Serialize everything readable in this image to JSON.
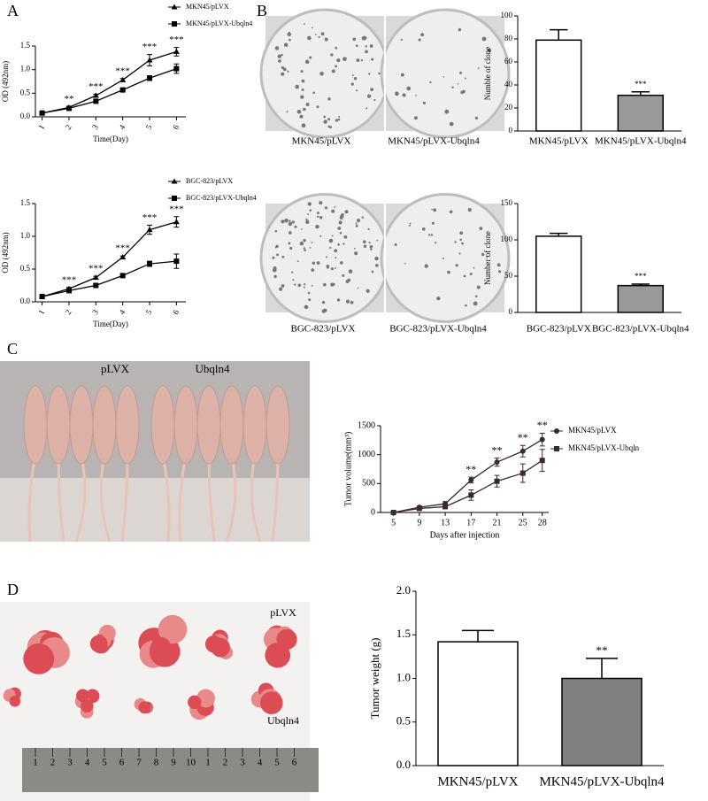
{
  "panel_letters": [
    "A",
    "B",
    "C",
    "D"
  ],
  "plates": {
    "captions": [
      "MKN45/pLVX",
      "MKN45/pLVX-Ubqln4",
      "BGC-823/pLVX",
      "BGC-823/pLVX-Ubqln4"
    ]
  },
  "mice_photo": {
    "labels": [
      "pLVX",
      "Ubqln4"
    ]
  },
  "tumor_photo": {
    "labels": [
      "pLVX",
      "Ubqln4"
    ],
    "ruler": [
      "1",
      "2",
      "3",
      "4",
      "5",
      "6",
      "7",
      "8",
      "9",
      "10",
      "1",
      "2",
      "3",
      "4",
      "5",
      "6"
    ]
  },
  "chart_data": [
    {
      "type": "line",
      "x_label": "Time(Day)",
      "y_label": "OD (492nm)",
      "legend": "top-right",
      "x": [
        1,
        2,
        3,
        4,
        5,
        6
      ],
      "xlim": [
        0.75,
        6.35
      ],
      "xticks": [
        1,
        2,
        3,
        4,
        5,
        6
      ],
      "ylim": [
        0,
        1.5
      ],
      "yticks": [
        {
          "value": 0,
          "label": "0.0"
        },
        {
          "value": 0.5,
          "label": "0.5"
        },
        {
          "value": 1,
          "label": "1.0"
        },
        {
          "value": 1.5,
          "label": "1.5"
        }
      ],
      "series": [
        {
          "name": "MKN45/pLVX",
          "color": "#000000",
          "marker": "triangle",
          "values": [
            0.08,
            0.2,
            0.45,
            0.78,
            1.2,
            1.38
          ],
          "errors": [
            0.01,
            0.02,
            0.03,
            0.03,
            0.12,
            0.09
          ]
        },
        {
          "name": "MKN45/pLVX-Ubqln4",
          "color": "#000000",
          "marker": "square",
          "values": [
            0.08,
            0.18,
            0.33,
            0.57,
            0.82,
            1.02
          ],
          "errors": [
            0.01,
            0.02,
            0.02,
            0.02,
            0.05,
            0.1
          ]
        }
      ],
      "significance": [
        null,
        "**",
        "***",
        "***",
        "***",
        "***"
      ]
    },
    {
      "type": "line",
      "x_label": "Time(Day)",
      "y_label": "OD (492nm)",
      "legend": "top-right",
      "x": [
        1,
        2,
        3,
        4,
        5,
        6
      ],
      "xlim": [
        0.75,
        6.35
      ],
      "xticks": [
        1,
        2,
        3,
        4,
        5,
        6
      ],
      "ylim": [
        0,
        1.5
      ],
      "yticks": [
        {
          "value": 0,
          "label": "0.0"
        },
        {
          "value": 0.5,
          "label": "0.5"
        },
        {
          "value": 1,
          "label": "1.0"
        },
        {
          "value": 1.5,
          "label": "1.5"
        }
      ],
      "series": [
        {
          "name": "BGC-823/pLVX",
          "color": "#000000",
          "marker": "triangle",
          "values": [
            0.08,
            0.2,
            0.37,
            0.68,
            1.1,
            1.22
          ],
          "errors": [
            0.01,
            0.02,
            0.02,
            0.02,
            0.07,
            0.08
          ]
        },
        {
          "name": "BGC-823/pLVX-Ubqln4",
          "color": "#000000",
          "marker": "square",
          "values": [
            0.08,
            0.17,
            0.25,
            0.4,
            0.58,
            0.62
          ],
          "errors": [
            0.01,
            0.02,
            0.02,
            0.02,
            0.04,
            0.11
          ]
        }
      ],
      "significance": [
        null,
        "***",
        "***",
        "***",
        "***",
        "***"
      ]
    },
    {
      "type": "bar",
      "y_label": "Numble of clone",
      "categories": [
        "MKN45/pLVX",
        "MKN45/pLVX-Ubqln4"
      ],
      "values": [
        79,
        31
      ],
      "errors": [
        9,
        3
      ],
      "colors": [
        "#ffffff",
        "#999999"
      ],
      "ylim": [
        0,
        100
      ],
      "yticks": [
        0,
        20,
        40,
        60,
        80,
        100
      ],
      "significance": [
        null,
        "***"
      ]
    },
    {
      "type": "bar",
      "y_label": "Number of clone",
      "categories": [
        "BGC-823/pLVX",
        "BGC-823/pLVX-Ubqln4"
      ],
      "values": [
        105,
        37
      ],
      "errors": [
        4,
        2
      ],
      "colors": [
        "#ffffff",
        "#999999"
      ],
      "ylim": [
        0,
        150
      ],
      "yticks": [
        0,
        50,
        100,
        150
      ],
      "significance": [
        null,
        "***"
      ]
    },
    {
      "type": "line",
      "x_label": "Days after injection",
      "y_label": "Tumor volume(mm³)",
      "legend": "top-right",
      "x": [
        5,
        9,
        13,
        17,
        21,
        25,
        28
      ],
      "xlim": [
        3,
        29
      ],
      "xticks": [
        5,
        9,
        13,
        17,
        21,
        25,
        28
      ],
      "ylim": [
        0,
        1500
      ],
      "yticks": [
        0,
        500,
        1000,
        1500
      ],
      "series": [
        {
          "name": "MKN45/pLVX",
          "color": "#3a2a2a",
          "marker": "circle",
          "values": [
            0,
            90,
            150,
            560,
            870,
            1060,
            1260
          ],
          "errors": [
            10,
            20,
            40,
            50,
            70,
            100,
            110
          ]
        },
        {
          "name": "MKN45/pLVX-Ubqln",
          "color": "#3a2a2a",
          "marker": "square",
          "values": [
            0,
            70,
            100,
            300,
            540,
            680,
            900
          ],
          "errors": [
            10,
            20,
            30,
            90,
            100,
            160,
            190
          ]
        }
      ],
      "significance": [
        null,
        null,
        null,
        "**",
        "**",
        "**",
        "**"
      ]
    },
    {
      "type": "bar",
      "y_label": "Tumor weight (g)",
      "categories": [
        "MKN45/pLVX",
        "MKN45/pLVX-Ubqln4"
      ],
      "values": [
        1.42,
        1.0
      ],
      "errors": [
        0.13,
        0.23
      ],
      "colors": [
        "#ffffff",
        "#808080"
      ],
      "ylim": [
        0,
        2
      ],
      "yticks": [
        {
          "value": 0,
          "label": "0.0"
        },
        {
          "value": 0.5,
          "label": "0.5"
        },
        {
          "value": 1,
          "label": "1.0"
        },
        {
          "value": 1.5,
          "label": "1.5"
        },
        {
          "value": 2,
          "label": "2.0"
        }
      ],
      "significance": [
        null,
        "**"
      ]
    }
  ]
}
